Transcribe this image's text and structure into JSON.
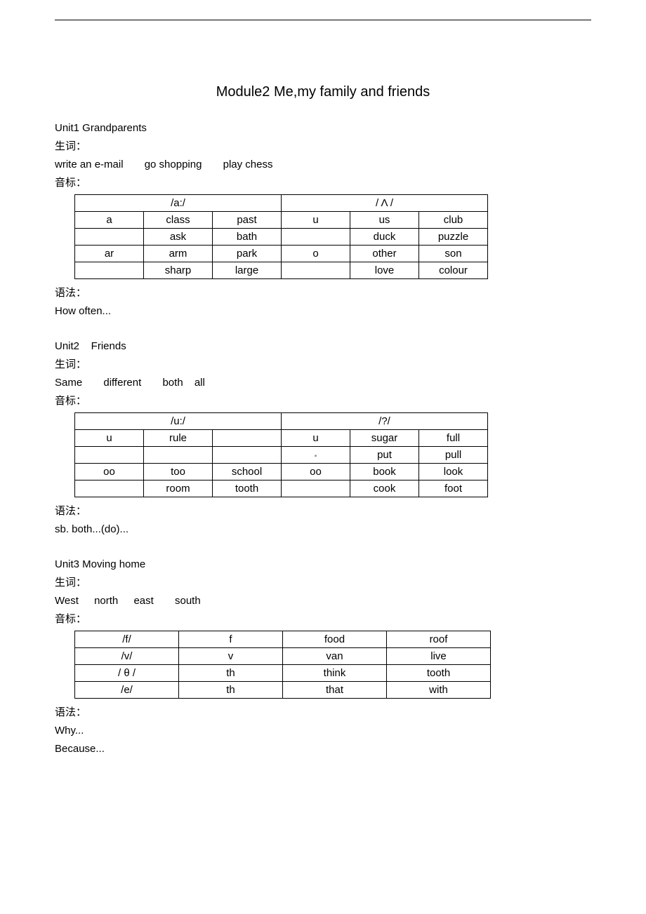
{
  "top": {
    "title": "Module2 Me,my family and friends"
  },
  "u1": {
    "heading": "Unit1 Grandparents",
    "vocab_label": "生词：",
    "vocab": [
      "write an e-mail",
      "go shopping",
      "play chess"
    ],
    "phon_label": "音标：",
    "table": {
      "h1": "/a:/",
      "h2": "/ Λ /",
      "rows": [
        [
          "a",
          "class",
          "past",
          "u",
          "us",
          "club"
        ],
        [
          "",
          "ask",
          "bath",
          "",
          "duck",
          "puzzle"
        ],
        [
          "ar",
          "arm",
          "park",
          "o",
          "other",
          "son"
        ],
        [
          "",
          "sharp",
          "large",
          "",
          "love",
          "colour"
        ]
      ]
    },
    "grammar_label": "语法：",
    "grammar": "How often..."
  },
  "u2": {
    "heading": "Unit2    Friends",
    "vocab_label": "生词：",
    "vocab": [
      "Same",
      "different",
      "both",
      "all"
    ],
    "phon_label": "音标：",
    "table": {
      "h1": "/u:/",
      "h2": "/?/",
      "rows": [
        [
          "u",
          "rule",
          "",
          "u",
          "sugar",
          "full"
        ],
        [
          "",
          "",
          "",
          "",
          "put",
          "pull"
        ],
        [
          "oo",
          "too",
          "school",
          "oo",
          "book",
          "look"
        ],
        [
          "",
          "room",
          "tooth",
          "",
          "cook",
          "foot"
        ]
      ],
      "dot_cell": [
        1,
        3
      ]
    },
    "grammar_label": "语法：",
    "grammar": "sb. both...(do)..."
  },
  "u3": {
    "heading": "Unit3 Moving home",
    "vocab_label": "生词：",
    "vocab": [
      "West",
      "north",
      "east",
      "south"
    ],
    "phon_label": "音标：",
    "table": {
      "rows": [
        [
          "/f/",
          "f",
          "food",
          "roof"
        ],
        [
          "/v/",
          "v",
          "van",
          "live"
        ],
        [
          "/ θ /",
          "th",
          "think",
          "tooth"
        ],
        [
          "/e/",
          "th",
          "that",
          "with"
        ]
      ]
    },
    "grammar_label": "语法：",
    "grammar1": "Why...",
    "grammar2": "Because..."
  }
}
